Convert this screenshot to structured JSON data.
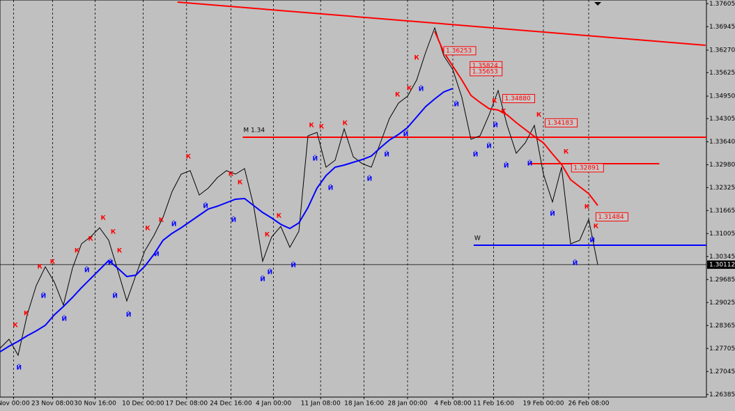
{
  "chart_data": {
    "type": "line",
    "x": [
      0,
      1,
      2,
      3,
      4,
      5,
      6,
      7,
      8,
      9,
      10,
      11,
      12,
      13,
      14,
      15,
      16,
      17,
      18,
      19,
      20,
      21,
      22,
      23,
      24,
      25,
      26,
      27,
      28,
      29,
      30,
      31,
      32,
      33,
      34,
      35,
      36,
      37,
      38,
      39,
      40,
      41,
      42,
      43,
      44,
      45,
      46,
      47,
      48,
      49,
      50,
      51,
      52,
      53,
      54,
      55,
      56,
      57,
      58,
      59,
      60,
      61,
      62,
      63,
      64,
      65,
      66
    ],
    "series": [
      {
        "color": "#000000",
        "values": [
          1.2771,
          1.2797,
          1.2751,
          1.2867,
          1.2951,
          1.3005,
          1.2961,
          1.2895,
          1.3001,
          1.3071,
          1.3091,
          1.3117,
          1.3081,
          1.2995,
          1.2907,
          1.2981,
          1.3051,
          1.3095,
          1.3147,
          1.3221,
          1.3271,
          1.3281,
          1.3211,
          1.3231,
          1.3261,
          1.3281,
          1.3271,
          1.3287,
          1.3181,
          1.3021,
          1.3091,
          1.3121,
          1.3061,
          1.3107,
          1.3381,
          1.3391,
          1.3291,
          1.3311,
          1.3401,
          1.3321,
          1.3301,
          1.3291,
          1.3361,
          1.3431,
          1.3475,
          1.3495,
          1.3541,
          1.3621,
          1.3691,
          1.3611,
          1.3571,
          1.3491,
          1.3371,
          1.3381,
          1.3441,
          1.3511,
          1.3411,
          1.3331,
          1.3361,
          1.3411,
          1.3271,
          1.3191,
          1.3291,
          1.3071,
          1.3081,
          1.3141,
          1.3011
        ]
      },
      {
        "color": "#0000ff",
        "values": [
          1.2761,
          1.2777,
          1.2791,
          1.2807,
          1.2821,
          1.2837,
          1.2867,
          1.2891,
          1.2917,
          1.2945,
          1.2971,
          1.2997,
          1.3023,
          1.3001,
          1.2977,
          1.2981,
          1.3007,
          1.3041,
          1.3081,
          1.3101,
          1.3117,
          1.3135,
          1.3153,
          1.3171,
          1.3179,
          1.3189,
          1.3199,
          1.3201,
          1.3181,
          1.3161,
          1.3145,
          1.3127,
          1.3115,
          1.3131,
          1.3175,
          1.3231,
          1.3267,
          1.3291,
          1.3297,
          1.3305,
          1.3313,
          1.3323,
          1.3347,
          1.3369,
          1.3385,
          1.3405,
          1.3435,
          1.3465,
          1.3487,
          1.3507,
          1.3517,
          null,
          null,
          null,
          null,
          null,
          null,
          null,
          null,
          null,
          null,
          null,
          null,
          null,
          null,
          null,
          null
        ]
      },
      {
        "color": "#ff0000",
        "values": [
          null,
          null,
          null,
          null,
          null,
          null,
          null,
          null,
          null,
          null,
          null,
          null,
          null,
          null,
          null,
          null,
          null,
          null,
          null,
          null,
          null,
          null,
          null,
          null,
          null,
          null,
          null,
          null,
          null,
          null,
          null,
          null,
          null,
          null,
          null,
          null,
          null,
          null,
          null,
          null,
          null,
          null,
          null,
          null,
          null,
          null,
          null,
          null,
          1.3681,
          1.3621,
          1.3581,
          1.3541,
          1.3497,
          1.3477,
          1.3459,
          1.3455,
          1.3441,
          1.3419,
          1.3399,
          1.3379,
          1.3361,
          1.3329,
          1.3299,
          1.3255,
          1.3235,
          1.3215,
          1.3181
        ]
      }
    ],
    "xlim": [
      0,
      78
    ],
    "ylim": [
      1.2631,
      1.3771
    ],
    "xticks": [
      {
        "value": 1.5,
        "label": "Nov 00:00"
      },
      {
        "value": 5.8,
        "label": "23 Nov 08:00"
      },
      {
        "value": 10.5,
        "label": "30 Nov 16:00"
      },
      {
        "value": 15.8,
        "label": "10 Dec 00:00"
      },
      {
        "value": 20.6,
        "label": "17 Dec 08:00"
      },
      {
        "value": 25.5,
        "label": "24 Dec 16:00"
      },
      {
        "value": 30.2,
        "label": "4 Jan 00:00"
      },
      {
        "value": 35.4,
        "label": "11 Jan 08:00"
      },
      {
        "value": 40.2,
        "label": "18 Jan 16:00"
      },
      {
        "value": 45,
        "label": "28 Jan 00:00"
      },
      {
        "value": 50,
        "label": "4 Feb 08:00"
      },
      {
        "value": 54.5,
        "label": "11 Feb 16:00"
      },
      {
        "value": 60,
        "label": "19 Feb 00:00"
      },
      {
        "value": 65,
        "label": "26 Feb 08:00"
      }
    ],
    "yticks": [
      {
        "value": 1.37605,
        "label": "1.37605"
      },
      {
        "value": 1.36945,
        "label": "1.36945"
      },
      {
        "value": 1.3627,
        "label": "1.36270"
      },
      {
        "value": 1.35625,
        "label": "1.35625"
      },
      {
        "value": 1.3495,
        "label": "1.34950"
      },
      {
        "value": 1.34305,
        "label": "1.34305"
      },
      {
        "value": 1.3364,
        "label": "1.33640"
      },
      {
        "value": 1.3298,
        "label": "1.32980"
      },
      {
        "value": 1.32325,
        "label": "1.32325"
      },
      {
        "value": 1.31665,
        "label": "1.31665"
      },
      {
        "value": 1.31005,
        "label": "1.31005"
      },
      {
        "value": 1.30345,
        "label": "1.30345"
      },
      {
        "value": 1.29685,
        "label": "1.29685"
      },
      {
        "value": 1.29025,
        "label": "1.29025"
      },
      {
        "value": 1.28365,
        "label": "1.28365"
      },
      {
        "value": 1.27705,
        "label": "1.27705"
      },
      {
        "value": 1.27045,
        "label": "1.27045"
      },
      {
        "value": 1.26385,
        "label": "1.26385"
      }
    ],
    "grid": true,
    "fractals": [
      {
        "label": "К",
        "color": "#ff0000",
        "x": [
          1.7,
          2.9,
          4.4,
          5.8,
          8.5,
          10,
          11.4,
          12.5,
          13.2,
          16.3,
          17.8,
          20.8,
          25.5,
          26.5,
          29.5,
          30.8,
          34.4,
          35.5,
          38.1,
          43.9,
          45.2,
          46,
          54.6,
          55.6,
          59.5,
          62.5,
          64.8,
          65.8
        ],
        "y": [
          1.2837,
          1.2871,
          1.3005,
          1.3019,
          1.3051,
          1.3085,
          1.3145,
          1.3105,
          1.3051,
          1.3115,
          1.3139,
          1.3321,
          1.3271,
          1.3247,
          1.3097,
          1.3151,
          1.3411,
          1.3407,
          1.3417,
          1.3499,
          1.3517,
          1.3605,
          1.3481,
          1.3451,
          1.3441,
          1.3335,
          1.3177,
          1.3121
        ]
      },
      {
        "label": "Й",
        "color": "#0000ff",
        "x": [
          2.1,
          4.8,
          7.1,
          9.6,
          12.2,
          12.7,
          14.2,
          17.3,
          19.2,
          22.7,
          25.8,
          29,
          29.8,
          32.4,
          34.8,
          36.5,
          40.8,
          42.7,
          44.8,
          46.5,
          50.4,
          52.5,
          54,
          54.7,
          55.9,
          58.5,
          61,
          63.5,
          65.4
        ],
        "y": [
          1.2715,
          1.2921,
          1.2855,
          1.2995,
          1.3017,
          1.2921,
          1.2867,
          1.3041,
          1.3127,
          1.3179,
          1.3139,
          1.2969,
          1.2989,
          1.3009,
          1.3315,
          1.3231,
          1.3257,
          1.3327,
          1.3385,
          1.3515,
          1.3471,
          1.3327,
          1.3351,
          1.3411,
          1.3295,
          1.3301,
          1.3157,
          1.3015,
          1.3081
        ]
      }
    ],
    "levels": [
      {
        "label": "M 1.34",
        "value": 1.3377,
        "color": "#ff0000",
        "x": [
          26.8,
          78
        ]
      },
      {
        "value": 1.3301,
        "color": "#ff0000",
        "x": [
          58.5,
          72.8
        ]
      },
      {
        "label": "W",
        "value": 1.3067,
        "color": "#0000ff",
        "x": [
          52.3,
          78
        ]
      }
    ],
    "trendline": {
      "color": "#ff0000",
      "x": [
        19.6,
        77.9
      ],
      "y": [
        1.3765,
        1.3641
      ]
    },
    "price_tags": [
      {
        "value": 1.36253,
        "label": "1.36253",
        "x": 49
      },
      {
        "value": 1.35824,
        "label": "1.35824",
        "x": 51.9
      },
      {
        "value": 1.35653,
        "label": "1.35653",
        "x": 51.9
      },
      {
        "value": 1.3488,
        "label": "1.34880",
        "x": 55.5
      },
      {
        "value": 1.34183,
        "label": "1.34183",
        "x": 60.2
      },
      {
        "value": 1.32891,
        "label": "1.32891",
        "x": 63.1
      },
      {
        "value": 1.31484,
        "label": "1.31484",
        "x": 65.8
      }
    ],
    "current_price": {
      "value": 1.30112,
      "label": "1.30112"
    }
  }
}
